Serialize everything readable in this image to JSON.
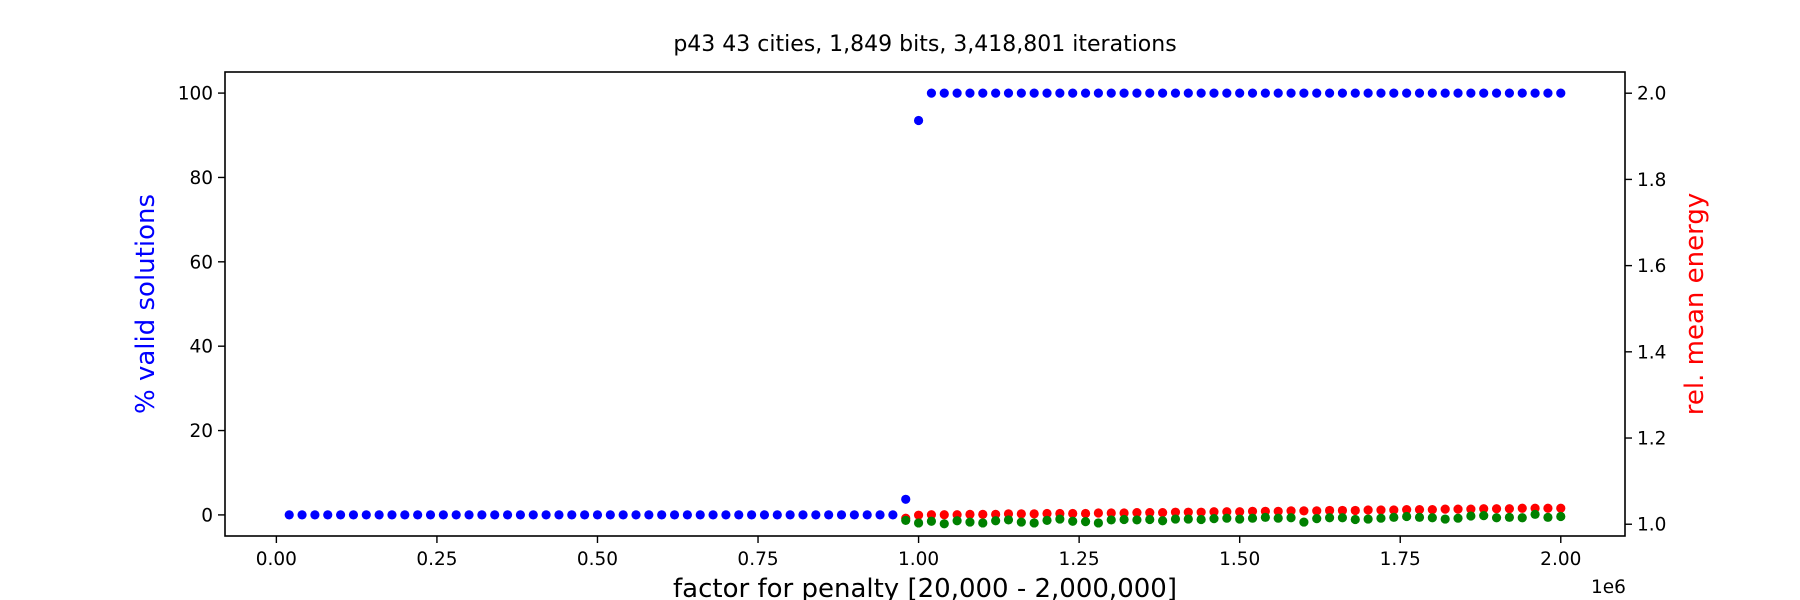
{
  "chart_data": {
    "type": "scatter",
    "title": "p43 43 cities, 1,849 bits, 3,418,801 iterations",
    "xlabel": "factor for penalty [20,000 - 2,000,000]",
    "ylabel": "% valid solutions",
    "ylabel_color": "#0000ff",
    "y2label": "rel. mean energy",
    "y2label_color": "#ff0000",
    "x_offset_label": "1e6",
    "x_scale": 1000000,
    "xlim": [
      -0.08,
      2.1
    ],
    "ylim": [
      -5,
      105
    ],
    "y2lim": [
      0.9727,
      2.0492
    ],
    "x_ticks": [
      {
        "value": 0.0,
        "label": "0.00"
      },
      {
        "value": 0.25,
        "label": "0.25"
      },
      {
        "value": 0.5,
        "label": "0.50"
      },
      {
        "value": 0.75,
        "label": "0.75"
      },
      {
        "value": 1.0,
        "label": "1.00"
      },
      {
        "value": 1.25,
        "label": "1.25"
      },
      {
        "value": 1.5,
        "label": "1.50"
      },
      {
        "value": 1.75,
        "label": "1.75"
      },
      {
        "value": 2.0,
        "label": "2.00"
      }
    ],
    "y_ticks": [
      {
        "value": 0,
        "label": "0"
      },
      {
        "value": 20,
        "label": "20"
      },
      {
        "value": 40,
        "label": "40"
      },
      {
        "value": 60,
        "label": "60"
      },
      {
        "value": 80,
        "label": "80"
      },
      {
        "value": 100,
        "label": "100"
      }
    ],
    "y2_ticks": [
      {
        "value": 1.0,
        "label": "1.0"
      },
      {
        "value": 1.2,
        "label": "1.2"
      },
      {
        "value": 1.4,
        "label": "1.4"
      },
      {
        "value": 1.6,
        "label": "1.6"
      },
      {
        "value": 1.8,
        "label": "1.8"
      },
      {
        "value": 2.0,
        "label": "2.0"
      }
    ],
    "grid": false,
    "legend": "none",
    "series": [
      {
        "axis": "left",
        "color": "#0000ff",
        "points": [
          [
            0.02,
            0
          ],
          [
            0.04,
            0
          ],
          [
            0.06,
            0
          ],
          [
            0.08,
            0
          ],
          [
            0.1,
            0
          ],
          [
            0.12,
            0
          ],
          [
            0.14,
            0
          ],
          [
            0.16,
            0
          ],
          [
            0.18,
            0
          ],
          [
            0.2,
            0
          ],
          [
            0.22,
            0
          ],
          [
            0.24,
            0
          ],
          [
            0.26,
            0
          ],
          [
            0.28,
            0
          ],
          [
            0.3,
            0
          ],
          [
            0.32,
            0
          ],
          [
            0.34,
            0
          ],
          [
            0.36,
            0
          ],
          [
            0.38,
            0
          ],
          [
            0.4,
            0
          ],
          [
            0.42,
            0
          ],
          [
            0.44,
            0
          ],
          [
            0.46,
            0
          ],
          [
            0.48,
            0
          ],
          [
            0.5,
            0
          ],
          [
            0.52,
            0
          ],
          [
            0.54,
            0
          ],
          [
            0.56,
            0
          ],
          [
            0.58,
            0
          ],
          [
            0.6,
            0
          ],
          [
            0.62,
            0
          ],
          [
            0.64,
            0
          ],
          [
            0.66,
            0
          ],
          [
            0.68,
            0
          ],
          [
            0.7,
            0
          ],
          [
            0.72,
            0
          ],
          [
            0.74,
            0
          ],
          [
            0.76,
            0
          ],
          [
            0.78,
            0
          ],
          [
            0.8,
            0
          ],
          [
            0.82,
            0
          ],
          [
            0.84,
            0
          ],
          [
            0.86,
            0
          ],
          [
            0.88,
            0
          ],
          [
            0.9,
            0
          ],
          [
            0.92,
            0
          ],
          [
            0.94,
            0
          ],
          [
            0.96,
            0
          ],
          [
            0.98,
            3.7
          ],
          [
            1.0,
            93.5
          ],
          [
            1.02,
            100
          ],
          [
            1.04,
            100
          ],
          [
            1.06,
            100
          ],
          [
            1.08,
            100
          ],
          [
            1.1,
            100
          ],
          [
            1.12,
            100
          ],
          [
            1.14,
            100
          ],
          [
            1.16,
            100
          ],
          [
            1.18,
            100
          ],
          [
            1.2,
            100
          ],
          [
            1.22,
            100
          ],
          [
            1.24,
            100
          ],
          [
            1.26,
            100
          ],
          [
            1.28,
            100
          ],
          [
            1.3,
            100
          ],
          [
            1.32,
            100
          ],
          [
            1.34,
            100
          ],
          [
            1.36,
            100
          ],
          [
            1.38,
            100
          ],
          [
            1.4,
            100
          ],
          [
            1.42,
            100
          ],
          [
            1.44,
            100
          ],
          [
            1.46,
            100
          ],
          [
            1.48,
            100
          ],
          [
            1.5,
            100
          ],
          [
            1.52,
            100
          ],
          [
            1.54,
            100
          ],
          [
            1.56,
            100
          ],
          [
            1.58,
            100
          ],
          [
            1.6,
            100
          ],
          [
            1.62,
            100
          ],
          [
            1.64,
            100
          ],
          [
            1.66,
            100
          ],
          [
            1.68,
            100
          ],
          [
            1.7,
            100
          ],
          [
            1.72,
            100
          ],
          [
            1.74,
            100
          ],
          [
            1.76,
            100
          ],
          [
            1.78,
            100
          ],
          [
            1.8,
            100
          ],
          [
            1.82,
            100
          ],
          [
            1.84,
            100
          ],
          [
            1.86,
            100
          ],
          [
            1.88,
            100
          ],
          [
            1.9,
            100
          ],
          [
            1.92,
            100
          ],
          [
            1.94,
            100
          ],
          [
            1.96,
            100
          ],
          [
            1.98,
            100
          ],
          [
            2.0,
            100
          ]
        ]
      },
      {
        "axis": "right",
        "color": "#ff0000",
        "points": [
          [
            0.98,
            1.014
          ],
          [
            1.0,
            1.021
          ],
          [
            1.02,
            1.022
          ],
          [
            1.04,
            1.022
          ],
          [
            1.06,
            1.022
          ],
          [
            1.08,
            1.023
          ],
          [
            1.1,
            1.023
          ],
          [
            1.12,
            1.023
          ],
          [
            1.14,
            1.024
          ],
          [
            1.16,
            1.024
          ],
          [
            1.18,
            1.024
          ],
          [
            1.2,
            1.025
          ],
          [
            1.22,
            1.025
          ],
          [
            1.24,
            1.025
          ],
          [
            1.26,
            1.025
          ],
          [
            1.28,
            1.026
          ],
          [
            1.3,
            1.026
          ],
          [
            1.32,
            1.026
          ],
          [
            1.34,
            1.027
          ],
          [
            1.36,
            1.027
          ],
          [
            1.38,
            1.027
          ],
          [
            1.4,
            1.028
          ],
          [
            1.42,
            1.028
          ],
          [
            1.44,
            1.028
          ],
          [
            1.46,
            1.029
          ],
          [
            1.48,
            1.029
          ],
          [
            1.5,
            1.029
          ],
          [
            1.52,
            1.03
          ],
          [
            1.54,
            1.03
          ],
          [
            1.56,
            1.03
          ],
          [
            1.58,
            1.031
          ],
          [
            1.6,
            1.031
          ],
          [
            1.62,
            1.031
          ],
          [
            1.64,
            1.032
          ],
          [
            1.66,
            1.032
          ],
          [
            1.68,
            1.032
          ],
          [
            1.7,
            1.033
          ],
          [
            1.72,
            1.033
          ],
          [
            1.74,
            1.033
          ],
          [
            1.76,
            1.034
          ],
          [
            1.78,
            1.034
          ],
          [
            1.8,
            1.034
          ],
          [
            1.82,
            1.035
          ],
          [
            1.84,
            1.035
          ],
          [
            1.86,
            1.035
          ],
          [
            1.88,
            1.036
          ],
          [
            1.9,
            1.036
          ],
          [
            1.92,
            1.036
          ],
          [
            1.94,
            1.037
          ],
          [
            1.96,
            1.037
          ],
          [
            1.98,
            1.037
          ],
          [
            2.0,
            1.037
          ]
        ]
      },
      {
        "axis": "right",
        "color": "#008000",
        "points": [
          [
            0.98,
            1.009
          ],
          [
            1.0,
            1.003
          ],
          [
            1.02,
            1.007
          ],
          [
            1.04,
            1.001
          ],
          [
            1.06,
            1.008
          ],
          [
            1.08,
            1.005
          ],
          [
            1.1,
            1.003
          ],
          [
            1.12,
            1.008
          ],
          [
            1.14,
            1.01
          ],
          [
            1.16,
            1.005
          ],
          [
            1.18,
            1.003
          ],
          [
            1.2,
            1.009
          ],
          [
            1.22,
            1.012
          ],
          [
            1.24,
            1.007
          ],
          [
            1.26,
            1.006
          ],
          [
            1.28,
            1.003
          ],
          [
            1.3,
            1.01
          ],
          [
            1.32,
            1.011
          ],
          [
            1.34,
            1.01
          ],
          [
            1.36,
            1.011
          ],
          [
            1.38,
            1.008
          ],
          [
            1.4,
            1.012
          ],
          [
            1.42,
            1.012
          ],
          [
            1.44,
            1.011
          ],
          [
            1.46,
            1.013
          ],
          [
            1.48,
            1.014
          ],
          [
            1.5,
            1.012
          ],
          [
            1.52,
            1.014
          ],
          [
            1.54,
            1.016
          ],
          [
            1.56,
            1.014
          ],
          [
            1.58,
            1.015
          ],
          [
            1.6,
            1.005
          ],
          [
            1.62,
            1.013
          ],
          [
            1.64,
            1.015
          ],
          [
            1.66,
            1.015
          ],
          [
            1.68,
            1.011
          ],
          [
            1.7,
            1.012
          ],
          [
            1.72,
            1.014
          ],
          [
            1.74,
            1.016
          ],
          [
            1.76,
            1.018
          ],
          [
            1.78,
            1.016
          ],
          [
            1.8,
            1.015
          ],
          [
            1.82,
            1.012
          ],
          [
            1.84,
            1.014
          ],
          [
            1.86,
            1.019
          ],
          [
            1.88,
            1.02
          ],
          [
            1.9,
            1.015
          ],
          [
            1.92,
            1.016
          ],
          [
            1.94,
            1.015
          ],
          [
            1.96,
            1.023
          ],
          [
            1.98,
            1.016
          ],
          [
            2.0,
            1.018
          ]
        ]
      }
    ]
  }
}
